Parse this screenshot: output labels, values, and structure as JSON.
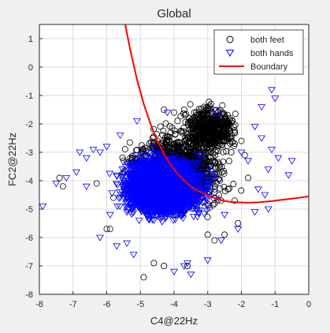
{
  "chart_data": {
    "type": "scatter",
    "title": "Global",
    "xlabel": "C4@22Hz",
    "ylabel": "FC2@22Hz",
    "xlim": [
      -8,
      0
    ],
    "ylim": [
      -8,
      1.5
    ],
    "xticks": [
      -8,
      -7,
      -6,
      -5,
      -4,
      -3,
      -2,
      -1,
      0
    ],
    "yticks": [
      -8,
      -7,
      -6,
      -5,
      -4,
      -3,
      -2,
      -1,
      0,
      1
    ],
    "grid": true,
    "legend_position": "top-right",
    "series": [
      {
        "name": "both feet",
        "marker": "circle",
        "color": "#000000",
        "cluster_center": [
          -3.9,
          -3.6
        ],
        "points": [
          [
            -7.4,
            -3.9
          ],
          [
            -7.3,
            -4.2
          ],
          [
            -6.3,
            -4.1
          ],
          [
            -6.0,
            -5.7
          ],
          [
            -5.9,
            -5.7
          ],
          [
            -5.8,
            -4.6
          ],
          [
            -4.9,
            -7.4
          ],
          [
            -4.6,
            -6.9
          ],
          [
            -4.3,
            -7.0
          ],
          [
            -3.6,
            -7.0
          ],
          [
            -3.0,
            -5.9
          ],
          [
            -2.8,
            -6.1
          ],
          [
            -2.5,
            -5.9
          ],
          [
            -2.1,
            -5.5
          ],
          [
            -3.1,
            -1.4
          ],
          [
            -2.9,
            -1.3
          ],
          [
            -2.7,
            -1.6
          ],
          [
            -2.5,
            -1.7
          ],
          [
            -2.2,
            -2.3
          ],
          [
            -2.0,
            -2.6
          ],
          [
            -1.9,
            -3.1
          ],
          [
            -1.8,
            -3.9
          ],
          [
            -2.3,
            -3.0
          ],
          [
            -2.6,
            -2.4
          ],
          [
            -4.0,
            -1.6
          ],
          [
            -4.3,
            -1.5
          ],
          [
            -3.4,
            -1.6
          ],
          [
            -3.7,
            -1.5
          ],
          [
            -2.4,
            -4.3
          ],
          [
            -2.2,
            -4.7
          ]
        ]
      },
      {
        "name": "both hands",
        "marker": "triangle-down",
        "color": "#0000ff",
        "cluster_center": [
          -4.3,
          -4.2
        ],
        "points": [
          [
            -0.3,
            -0.1
          ],
          [
            -1.1,
            -0.8
          ],
          [
            -1.0,
            -1.1
          ],
          [
            -1.4,
            -1.4
          ],
          [
            -1.4,
            -2.5
          ],
          [
            -1.1,
            -2.9
          ],
          [
            -0.9,
            -3.2
          ],
          [
            -0.5,
            -3.3
          ],
          [
            -0.6,
            -3.8
          ],
          [
            -1.2,
            -3.6
          ],
          [
            -1.3,
            -4.5
          ],
          [
            -1.8,
            -3.3
          ],
          [
            -2.0,
            -3.0
          ],
          [
            -1.6,
            -2.1
          ],
          [
            -7.9,
            -4.9
          ],
          [
            -7.5,
            -4.1
          ],
          [
            -7.2,
            -3.9
          ],
          [
            -6.8,
            -3.0
          ],
          [
            -6.6,
            -3.2
          ],
          [
            -6.4,
            -2.9
          ],
          [
            -6.2,
            -3.0
          ],
          [
            -6.0,
            -2.8
          ],
          [
            -6.9,
            -3.7
          ],
          [
            -6.6,
            -4.2
          ],
          [
            -6.2,
            -6.0
          ],
          [
            -5.9,
            -5.2
          ],
          [
            -5.7,
            -6.3
          ],
          [
            -5.4,
            -6.2
          ],
          [
            -5.2,
            -6.6
          ],
          [
            -4.0,
            -7.2
          ],
          [
            -3.7,
            -7.0
          ],
          [
            -3.6,
            -6.9
          ],
          [
            -3.5,
            -7.3
          ],
          [
            -3.0,
            -6.8
          ],
          [
            -2.6,
            -6.1
          ],
          [
            -2.1,
            -5.7
          ],
          [
            -2.5,
            -5.2
          ],
          [
            -2.8,
            -1.5
          ],
          [
            -2.7,
            -1.7
          ],
          [
            -4.2,
            -1.6
          ],
          [
            -5.1,
            -1.9
          ],
          [
            -5.6,
            -2.4
          ],
          [
            -1.6,
            -5.1
          ],
          [
            -1.2,
            -5.0
          ],
          [
            -1.5,
            -4.3
          ]
        ]
      },
      {
        "name": "Boundary",
        "type": "line",
        "color": "#ff0000",
        "x": [
          -5.45,
          -5.3,
          -5.1,
          -4.9,
          -4.7,
          -4.5,
          -4.3,
          -4.1,
          -3.9,
          -3.7,
          -3.5,
          -3.3,
          -3.1,
          -2.9,
          -2.7,
          -2.5,
          -2.3,
          -2.1,
          -1.9,
          -1.7,
          -1.5,
          -1.3,
          -1.1,
          -0.9,
          -0.7,
          -0.5,
          -0.3,
          -0.1,
          0.0
        ],
        "y": [
          1.5,
          0.6,
          -0.45,
          -1.3,
          -2.0,
          -2.6,
          -3.05,
          -3.45,
          -3.75,
          -4.0,
          -4.2,
          -4.35,
          -4.47,
          -4.57,
          -4.65,
          -4.71,
          -4.75,
          -4.76,
          -4.77,
          -4.77,
          -4.76,
          -4.74,
          -4.72,
          -4.69,
          -4.66,
          -4.63,
          -4.6,
          -4.57,
          -4.55
        ]
      }
    ]
  }
}
